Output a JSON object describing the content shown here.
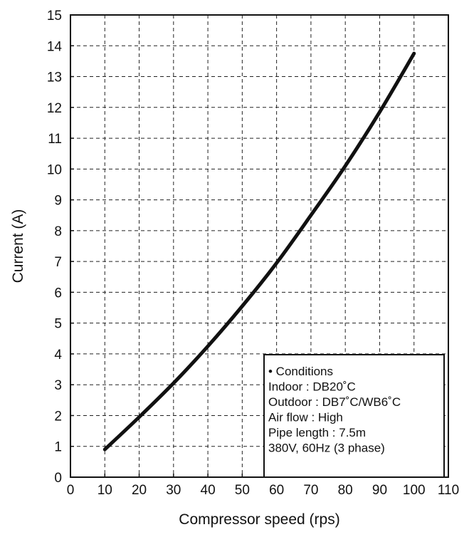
{
  "chart_data": {
    "type": "line",
    "xlabel": "Compressor speed (rps)",
    "ylabel": "Current (A)",
    "xlim": [
      0,
      110
    ],
    "ylim": [
      0,
      15
    ],
    "x_ticks": [
      "0",
      "10",
      "20",
      "30",
      "40",
      "50",
      "60",
      "70",
      "80",
      "90",
      "100",
      "110"
    ],
    "y_ticks": [
      "0",
      "1",
      "2",
      "3",
      "4",
      "5",
      "6",
      "7",
      "8",
      "9",
      "10",
      "11",
      "12",
      "13",
      "14",
      "15"
    ],
    "grid": true,
    "grid_style": "dashed",
    "series": [
      {
        "x": [
          10,
          20,
          30,
          40,
          50,
          60,
          70,
          80,
          90,
          100
        ],
        "y": [
          0.9,
          1.95,
          3.05,
          4.25,
          5.55,
          6.95,
          8.5,
          10.1,
          11.85,
          13.75
        ],
        "color": "#111111"
      }
    ],
    "annotations": {
      "placement": "bottom-right",
      "lines": [
        "• Conditions",
        "Indoor : DB20˚C",
        "Outdoor : DB7˚C/WB6˚C",
        "Air flow : High",
        "Pipe length : 7.5m",
        "380V, 60Hz (3 phase)"
      ]
    }
  }
}
